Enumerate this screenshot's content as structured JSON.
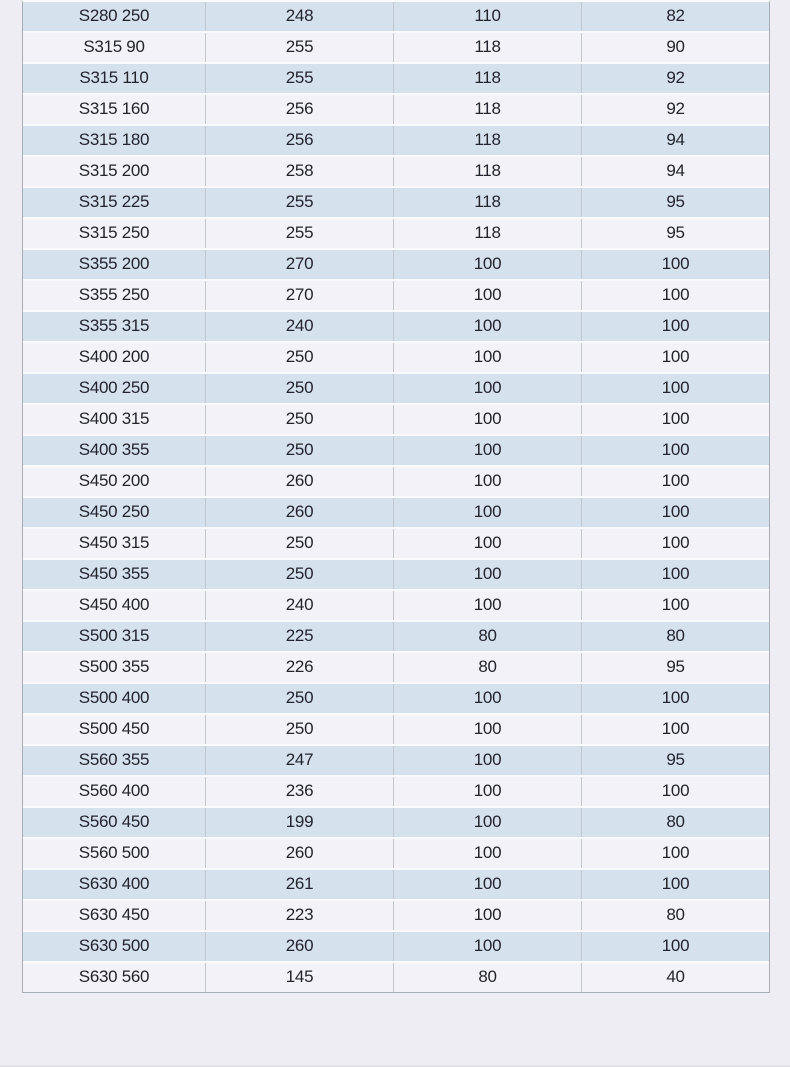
{
  "colors": {
    "page_bg": "#ededf3",
    "row_blue": "#d6e1ee",
    "row_light": "#f2f2f7",
    "row_separator": "#fafafc",
    "col_separator": "#c2c6cd",
    "table_border": "#a9adb5",
    "text_color": "#24242c",
    "bottom_strip": "#e0e0e6"
  },
  "table": {
    "rows": [
      {
        "label": "S280 250",
        "values": [
          "248",
          "110",
          "82"
        ]
      },
      {
        "label": "S315 90",
        "values": [
          "255",
          "118",
          "90"
        ]
      },
      {
        "label": "S315 110",
        "values": [
          "255",
          "118",
          "92"
        ]
      },
      {
        "label": "S315 160",
        "values": [
          "256",
          "118",
          "92"
        ]
      },
      {
        "label": "S315 180",
        "values": [
          "256",
          "118",
          "94"
        ]
      },
      {
        "label": "S315 200",
        "values": [
          "258",
          "118",
          "94"
        ]
      },
      {
        "label": "S315 225",
        "values": [
          "255",
          "118",
          "95"
        ]
      },
      {
        "label": "S315 250",
        "values": [
          "255",
          "118",
          "95"
        ]
      },
      {
        "label": "S355 200",
        "values": [
          "270",
          "100",
          "100"
        ]
      },
      {
        "label": "S355 250",
        "values": [
          "270",
          "100",
          "100"
        ]
      },
      {
        "label": "S355 315",
        "values": [
          "240",
          "100",
          "100"
        ]
      },
      {
        "label": "S400 200",
        "values": [
          "250",
          "100",
          "100"
        ]
      },
      {
        "label": "S400 250",
        "values": [
          "250",
          "100",
          "100"
        ]
      },
      {
        "label": "S400 315",
        "values": [
          "250",
          "100",
          "100"
        ]
      },
      {
        "label": "S400 355",
        "values": [
          "250",
          "100",
          "100"
        ]
      },
      {
        "label": "S450 200",
        "values": [
          "260",
          "100",
          "100"
        ]
      },
      {
        "label": "S450 250",
        "values": [
          "260",
          "100",
          "100"
        ]
      },
      {
        "label": "S450 315",
        "values": [
          "250",
          "100",
          "100"
        ]
      },
      {
        "label": "S450 355",
        "values": [
          "250",
          "100",
          "100"
        ]
      },
      {
        "label": "S450 400",
        "values": [
          "240",
          "100",
          "100"
        ]
      },
      {
        "label": "S500 315",
        "values": [
          "225",
          "80",
          "80"
        ]
      },
      {
        "label": "S500 355",
        "values": [
          "226",
          "80",
          "95"
        ]
      },
      {
        "label": "S500 400",
        "values": [
          "250",
          "100",
          "100"
        ]
      },
      {
        "label": "S500 450",
        "values": [
          "250",
          "100",
          "100"
        ]
      },
      {
        "label": "S560 355",
        "values": [
          "247",
          "100",
          "95"
        ]
      },
      {
        "label": "S560 400",
        "values": [
          "236",
          "100",
          "100"
        ]
      },
      {
        "label": "S560 450",
        "values": [
          "199",
          "100",
          "80"
        ]
      },
      {
        "label": "S560 500",
        "values": [
          "260",
          "100",
          "100"
        ]
      },
      {
        "label": "S630 400",
        "values": [
          "261",
          "100",
          "100"
        ]
      },
      {
        "label": "S630 450",
        "values": [
          "223",
          "100",
          "80"
        ]
      },
      {
        "label": "S630 500",
        "values": [
          "260",
          "100",
          "100"
        ]
      },
      {
        "label": "S630 560",
        "values": [
          "145",
          "80",
          "40"
        ]
      }
    ]
  }
}
